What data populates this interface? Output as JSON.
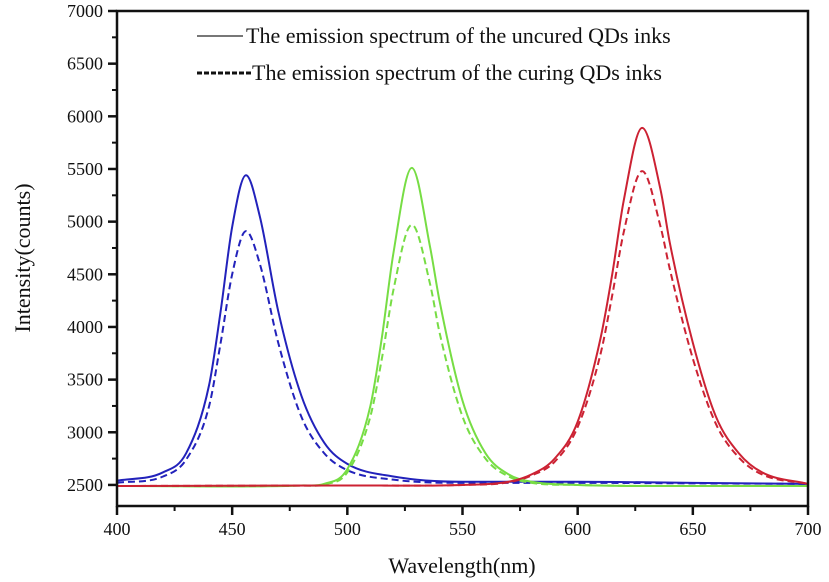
{
  "chart_data": {
    "type": "line",
    "title": "",
    "xlabel": "Wavelength(nm)",
    "ylabel": "Intensity(counts)",
    "xlim": [
      400,
      700
    ],
    "ylim": [
      2300,
      7000
    ],
    "x_ticks": [
      400,
      450,
      500,
      550,
      600,
      650,
      700
    ],
    "x_tick_labels": [
      "400",
      "450",
      "500",
      "550",
      "600",
      "650",
      "700"
    ],
    "y_ticks": [
      2500,
      3000,
      3500,
      4000,
      4500,
      5000,
      5500,
      6000,
      6500,
      7000
    ],
    "y_tick_labels": [
      "2500",
      "3000",
      "3500",
      "4000",
      "4500",
      "5000",
      "5500",
      "6000",
      "6500",
      "7000"
    ],
    "grid": false,
    "legend_position": "top-right",
    "legend": [
      {
        "label": "The emission spectrum of the uncured QDs inks",
        "style": "solid",
        "color": "#777777"
      },
      {
        "label": "The emission spectrum of the curing QDs inks",
        "style": "dashed",
        "color": "#111111"
      }
    ],
    "series": [
      {
        "name": "Blue uncured",
        "color": "#2222bb",
        "style": "solid",
        "x": [
          400,
          420,
          430,
          440,
          445,
          450,
          456,
          462,
          470,
          480,
          490,
          500,
          520,
          550,
          600,
          650,
          700
        ],
        "y": [
          2540,
          2620,
          2800,
          3450,
          4150,
          4950,
          5440,
          5050,
          4150,
          3350,
          2900,
          2700,
          2580,
          2530,
          2530,
          2520,
          2510
        ]
      },
      {
        "name": "Blue curing",
        "color": "#2222bb",
        "style": "dashed",
        "x": [
          400,
          420,
          430,
          440,
          445,
          450,
          456,
          462,
          470,
          480,
          490,
          500,
          520,
          550,
          600,
          650,
          700
        ],
        "y": [
          2520,
          2580,
          2740,
          3250,
          3850,
          4500,
          4910,
          4600,
          3850,
          3150,
          2800,
          2640,
          2550,
          2520,
          2520,
          2515,
          2510
        ]
      },
      {
        "name": "Green uncured",
        "color": "#77dd44",
        "style": "solid",
        "x": [
          400,
          480,
          490,
          500,
          510,
          515,
          520,
          528,
          536,
          540,
          550,
          560,
          570,
          580,
          600,
          650,
          700
        ],
        "y": [
          2490,
          2495,
          2510,
          2650,
          3250,
          3900,
          4700,
          5510,
          4750,
          4250,
          3300,
          2800,
          2600,
          2530,
          2500,
          2490,
          2490
        ]
      },
      {
        "name": "Green curing",
        "color": "#77dd44",
        "style": "dashed",
        "x": [
          400,
          480,
          490,
          500,
          510,
          515,
          520,
          528,
          536,
          540,
          550,
          560,
          570,
          580,
          600,
          650,
          700
        ],
        "y": [
          2490,
          2495,
          2505,
          2620,
          3150,
          3700,
          4350,
          4970,
          4400,
          3950,
          3150,
          2750,
          2580,
          2520,
          2500,
          2490,
          2490
        ]
      },
      {
        "name": "Red uncured",
        "color": "#cc2233",
        "style": "solid",
        "x": [
          400,
          500,
          550,
          570,
          580,
          590,
          600,
          610,
          615,
          620,
          628,
          636,
          640,
          650,
          660,
          670,
          680,
          700
        ],
        "y": [
          2490,
          2495,
          2500,
          2530,
          2600,
          2750,
          3100,
          3900,
          4500,
          5200,
          5890,
          5300,
          4800,
          3850,
          3150,
          2800,
          2620,
          2510
        ]
      },
      {
        "name": "Red curing",
        "color": "#cc2233",
        "style": "dashed",
        "x": [
          400,
          500,
          550,
          570,
          580,
          590,
          600,
          610,
          615,
          620,
          628,
          636,
          640,
          650,
          660,
          670,
          680,
          700
        ],
        "y": [
          2490,
          2495,
          2500,
          2525,
          2590,
          2720,
          3050,
          3750,
          4300,
          4900,
          5480,
          4950,
          4550,
          3700,
          3080,
          2760,
          2600,
          2510
        ]
      }
    ]
  }
}
